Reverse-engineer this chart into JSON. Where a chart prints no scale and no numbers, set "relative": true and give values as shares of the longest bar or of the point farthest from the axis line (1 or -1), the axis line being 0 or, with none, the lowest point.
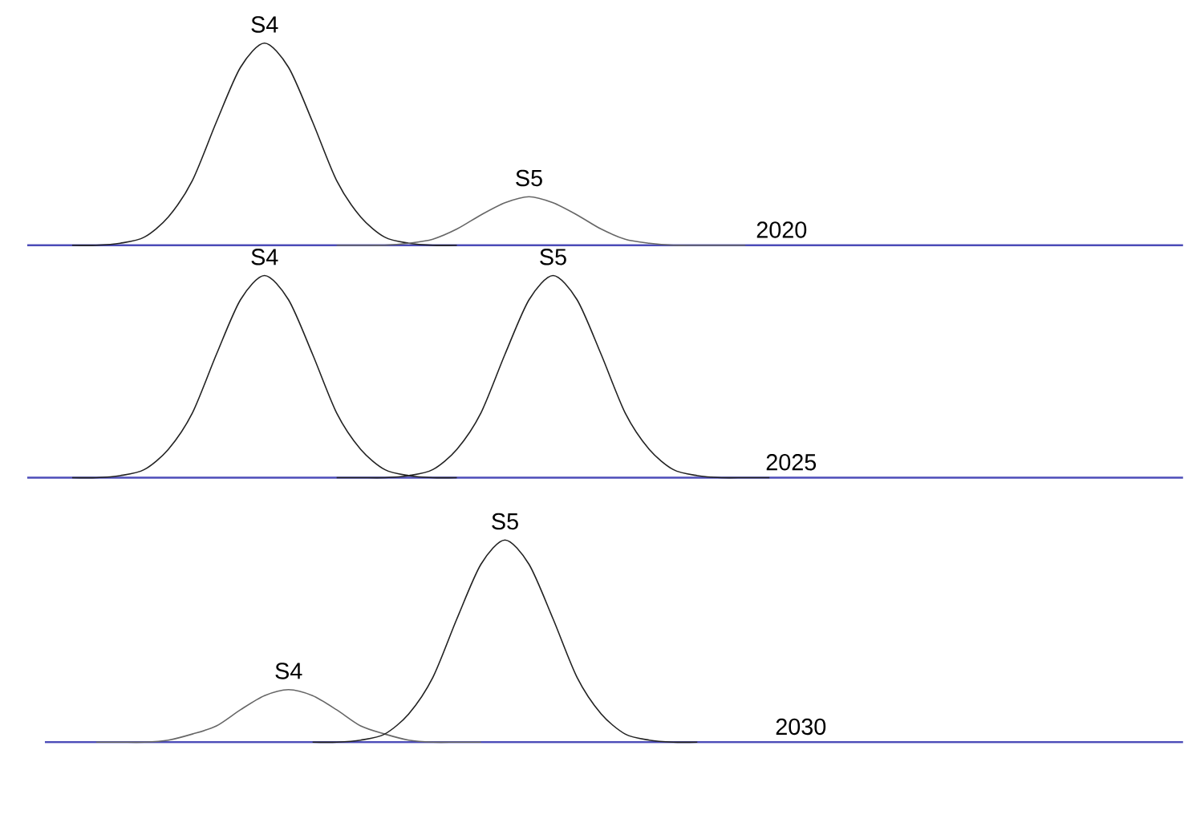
{
  "chart_data": [
    {
      "type": "line",
      "relative": true,
      "categories": [
        null,
        null,
        null,
        null,
        null,
        null,
        null,
        null,
        null,
        null,
        null,
        null,
        null,
        null,
        null,
        null,
        null,
        null,
        null,
        null,
        null,
        null,
        null,
        null,
        null,
        null,
        null,
        null,
        null,
        null,
        null,
        null,
        null,
        null,
        null,
        null,
        null,
        null,
        null,
        null,
        null,
        null,
        null,
        null,
        null,
        null,
        null,
        null
      ],
      "annotations": [
        "2020"
      ],
      "series": [
        {
          "name": "S4",
          "color": "#222222",
          "values": [
            null,
            null,
            0,
            0,
            0.01,
            0.04,
            0.14,
            0.32,
            0.61,
            0.88,
            1,
            0.88,
            0.61,
            0.32,
            0.14,
            0.04,
            0.01,
            0,
            0,
            null,
            null,
            null,
            null,
            null,
            null,
            null,
            null,
            null,
            null,
            null,
            null,
            null,
            null,
            null,
            null,
            null,
            null,
            null,
            null,
            null,
            null,
            null,
            null,
            null,
            null,
            null,
            null,
            null
          ]
        },
        {
          "name": "S5",
          "color": "#666666",
          "values": [
            null,
            null,
            null,
            null,
            null,
            null,
            null,
            null,
            null,
            null,
            null,
            null,
            null,
            0,
            0,
            0,
            0.01,
            0.03,
            0.08,
            0.15,
            0.21,
            0.24,
            0.21,
            0.15,
            0.08,
            0.03,
            0.01,
            0,
            0,
            0,
            0,
            null,
            null,
            null,
            null,
            null,
            null,
            null,
            null,
            null,
            null,
            null,
            null,
            null,
            null,
            null,
            null,
            null
          ]
        }
      ]
    },
    {
      "type": "line",
      "relative": true,
      "categories": [
        null,
        null,
        null,
        null,
        null,
        null,
        null,
        null,
        null,
        null,
        null,
        null,
        null,
        null,
        null,
        null,
        null,
        null,
        null,
        null,
        null,
        null,
        null,
        null,
        null,
        null,
        null,
        null,
        null,
        null,
        null,
        null,
        null,
        null,
        null,
        null,
        null,
        null,
        null,
        null,
        null,
        null,
        null,
        null,
        null,
        null,
        null,
        null
      ],
      "annotations": [
        "2025"
      ],
      "series": [
        {
          "name": "S4",
          "color": "#222222",
          "values": [
            null,
            null,
            0,
            0,
            0.01,
            0.04,
            0.14,
            0.32,
            0.61,
            0.88,
            1,
            0.88,
            0.61,
            0.32,
            0.14,
            0.04,
            0.01,
            0,
            0,
            null,
            null,
            null,
            null,
            null,
            null,
            null,
            null,
            null,
            null,
            null,
            null,
            null,
            null,
            null,
            null,
            null,
            null,
            null,
            null,
            null,
            null,
            null,
            null,
            null,
            null,
            null,
            null,
            null
          ]
        },
        {
          "name": "S5",
          "color": "#222222",
          "values": [
            null,
            null,
            null,
            null,
            null,
            null,
            null,
            null,
            null,
            null,
            null,
            null,
            null,
            0,
            0,
            0,
            0.01,
            0.04,
            0.14,
            0.32,
            0.61,
            0.88,
            1,
            0.88,
            0.61,
            0.32,
            0.14,
            0.04,
            0.01,
            0,
            0,
            0,
            null,
            null,
            null,
            null,
            null,
            null,
            null,
            null,
            null,
            null,
            null,
            null,
            null,
            null,
            null,
            null
          ]
        }
      ]
    },
    {
      "type": "line",
      "relative": true,
      "categories": [
        null,
        null,
        null,
        null,
        null,
        null,
        null,
        null,
        null,
        null,
        null,
        null,
        null,
        null,
        null,
        null,
        null,
        null,
        null,
        null,
        null,
        null,
        null,
        null,
        null,
        null,
        null,
        null,
        null,
        null,
        null,
        null,
        null,
        null,
        null,
        null,
        null,
        null,
        null,
        null,
        null,
        null,
        null,
        null,
        null,
        null,
        null,
        null
      ],
      "annotations": [
        "2030"
      ],
      "series": [
        {
          "name": "S4",
          "color": "#666666",
          "values": [
            null,
            null,
            null,
            0,
            0,
            0,
            0.01,
            0.04,
            0.08,
            0.16,
            0.23,
            0.26,
            0.23,
            0.16,
            0.08,
            0.04,
            0.01,
            0,
            0,
            0,
            null,
            null,
            null,
            null,
            null,
            null,
            null,
            null,
            null,
            null,
            null,
            null,
            null,
            null,
            null,
            null,
            null,
            null,
            null,
            null,
            null,
            null,
            null,
            null,
            null,
            null,
            null,
            null
          ]
        },
        {
          "name": "S5",
          "color": "#222222",
          "values": [
            null,
            null,
            null,
            null,
            null,
            null,
            null,
            null,
            null,
            null,
            null,
            null,
            0,
            0,
            0.01,
            0.04,
            0.14,
            0.32,
            0.61,
            0.88,
            1,
            0.88,
            0.61,
            0.32,
            0.14,
            0.04,
            0.01,
            0,
            0,
            null,
            null,
            null,
            null,
            null,
            null,
            null,
            null,
            null,
            null,
            null,
            null,
            null,
            null,
            null,
            null,
            null,
            null,
            null
          ]
        }
      ]
    }
  ]
}
